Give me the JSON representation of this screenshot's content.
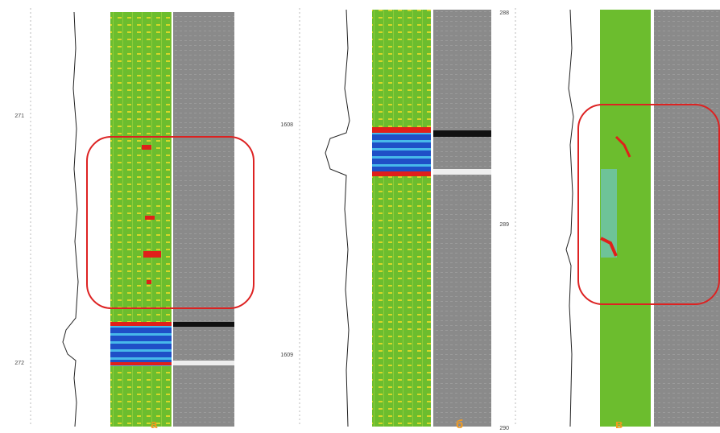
{
  "panels": [
    {
      "letter": "а",
      "depths": [
        "271",
        "272"
      ]
    },
    {
      "letter": "б",
      "depths": [
        "1608",
        "1609"
      ]
    },
    {
      "letter": "в",
      "depths": [
        "288",
        "289",
        "290"
      ]
    }
  ]
}
